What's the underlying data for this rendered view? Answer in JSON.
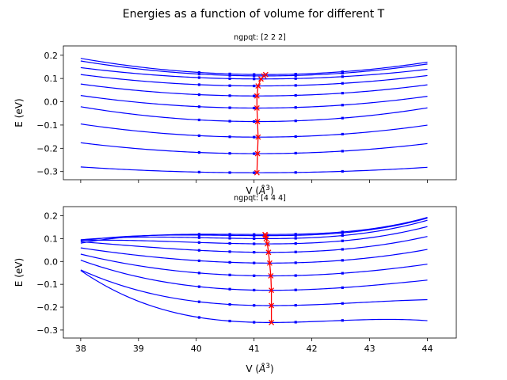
{
  "figure": {
    "title": "Energies as a function of volume for different T"
  },
  "chart_data": [
    {
      "type": "line",
      "title": "ngpqt: [2 2 2]",
      "xlabel": "V ($\\AA^3$)",
      "ylabel": "E (eV)",
      "xlim": [
        37.7,
        44.5
      ],
      "ylim": [
        -0.335,
        0.24
      ],
      "xticks": [
        38,
        39,
        40,
        41,
        42,
        43,
        44
      ],
      "xticklabels_visible": false,
      "yticks": [
        -0.3,
        -0.2,
        -0.1,
        0.0,
        0.1,
        0.2
      ],
      "yticklabels": [
        "−0.3",
        "−0.2",
        "−0.1",
        "0.0",
        "0.1",
        "0.2"
      ],
      "grid": false,
      "colors": {
        "curves": "#0000ff",
        "minima": "#ff0000"
      },
      "sample_x": [
        40.05,
        40.58,
        41.0,
        41.72,
        42.53
      ],
      "series": [
        {
          "min_v": 41.05,
          "e0": -0.305,
          "a": 0.00268,
          "b": 0.0
        },
        {
          "min_v": 41.06,
          "e0": -0.223,
          "a": 0.005,
          "b": 0.0
        },
        {
          "min_v": 41.07,
          "e0": -0.152,
          "a": 0.006,
          "b": 0.0
        },
        {
          "min_v": 41.06,
          "e0": -0.085,
          "a": 0.0068,
          "b": 0.0
        },
        {
          "min_v": 41.05,
          "e0": -0.027,
          "a": 0.0058,
          "b": 0.0
        },
        {
          "min_v": 41.05,
          "e0": 0.025,
          "a": 0.0055,
          "b": 0.0
        },
        {
          "min_v": 41.07,
          "e0": 0.068,
          "a": 0.0052,
          "b": 0.0
        },
        {
          "min_v": 41.12,
          "e0": 0.098,
          "a": 0.005,
          "b": 0.0
        },
        {
          "min_v": 41.17,
          "e0": 0.111,
          "a": 0.0064,
          "b": 0.0
        },
        {
          "min_v": 41.2,
          "e0": 0.117,
          "a": 0.0068,
          "b": 0.0
        }
      ]
    },
    {
      "type": "line",
      "title": "ngpqt: [4 4 4]",
      "xlabel": "V ($\\AA^3$)",
      "ylabel": "E (eV)",
      "xlim": [
        37.7,
        44.5
      ],
      "ylim": [
        -0.335,
        0.24
      ],
      "xticks": [
        38,
        39,
        40,
        41,
        42,
        43,
        44
      ],
      "xticklabels": [
        "38",
        "39",
        "40",
        "41",
        "42",
        "43",
        "44"
      ],
      "yticks": [
        -0.3,
        -0.2,
        -0.1,
        0.0,
        0.1,
        0.2
      ],
      "yticklabels": [
        "−0.3",
        "−0.2",
        "−0.1",
        "0.0",
        "0.1",
        "0.2"
      ],
      "grid": false,
      "colors": {
        "curves": "#0000ff",
        "minima": "#ff0000"
      },
      "sample_x": [
        40.05,
        40.58,
        41.0,
        41.72,
        42.53
      ],
      "series": [
        {
          "min_v": 41.3,
          "e0": -0.267,
          "a": 0.01,
          "b": -0.0033
        },
        {
          "min_v": 41.3,
          "e0": -0.193,
          "a": 0.0084,
          "b": -0.0018
        },
        {
          "min_v": 41.3,
          "e0": -0.126,
          "a": 0.0088,
          "b": -0.001
        },
        {
          "min_v": 41.29,
          "e0": -0.063,
          "a": 0.0078,
          "b": -0.0003
        },
        {
          "min_v": 41.27,
          "e0": -0.007,
          "a": 0.0072,
          "b": 0.0003
        },
        {
          "min_v": 41.25,
          "e0": 0.04,
          "a": 0.007,
          "b": 0.0008
        },
        {
          "min_v": 41.23,
          "e0": 0.077,
          "a": 0.006,
          "b": 0.0014
        },
        {
          "min_v": 41.21,
          "e0": 0.1,
          "a": 0.0053,
          "b": 0.0018
        },
        {
          "min_v": 41.2,
          "e0": 0.113,
          "a": 0.0042,
          "b": 0.002
        },
        {
          "min_v": 41.19,
          "e0": 0.118,
          "a": 0.0033,
          "b": 0.0022
        }
      ]
    }
  ]
}
